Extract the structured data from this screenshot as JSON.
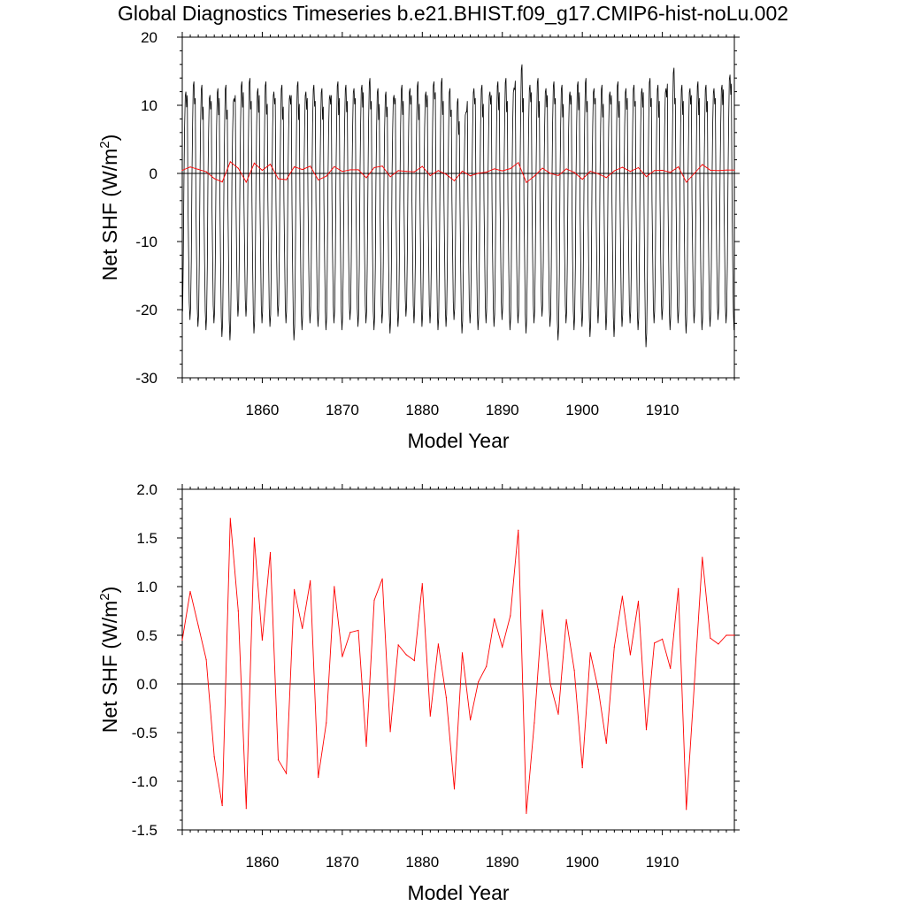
{
  "title": "Global Diagnostics Timeseries b.e21.BHIST.f09_g17.CMIP6-hist-noLu.002",
  "colors": {
    "monthly": "#000000",
    "annual": "#ff0000",
    "zero_line": "#000000",
    "axes": "#000000"
  },
  "chart_data": [
    {
      "type": "line",
      "xlabel": "Model Year",
      "ylabel_main": "Net SHF (W/m",
      "ylabel_sup": "2",
      "ylabel_close": ")",
      "xlim": [
        1850,
        1919
      ],
      "ylim": [
        -30,
        20
      ],
      "yticks": [
        "-30",
        "-20",
        "-10",
        "0",
        "10",
        "20"
      ],
      "xticks": [
        "1860",
        "1870",
        "1880",
        "1890",
        "1900",
        "1910"
      ],
      "grid": false,
      "reference_line": 0,
      "monthly_series": {
        "color": "#000000",
        "years": [
          1850,
          1919
        ],
        "annual_max": [
          12,
          13.5,
          13,
          11.5,
          12.5,
          13,
          11,
          13.5,
          14,
          12.5,
          13.5,
          12,
          13,
          11.5,
          13.5,
          12,
          13,
          12.5,
          11.5,
          13.5,
          13,
          12.5,
          13,
          14,
          12.5,
          12,
          11.5,
          13,
          12.5,
          13.5,
          12,
          13.5,
          14,
          12.5,
          11,
          9,
          12.5,
          13,
          12,
          13.5,
          14,
          12.5,
          16,
          13,
          14,
          12.5,
          13.5,
          13,
          12,
          13.5,
          14,
          12.5,
          13,
          12,
          13.5,
          12.5,
          13,
          12.5,
          14,
          13,
          12.5,
          15.5,
          13,
          12.5,
          13.5,
          13,
          12.5,
          13,
          14.5,
          15.5
        ],
        "annual_min": [
          -22,
          -21.5,
          -22.5,
          -23,
          -22,
          -24,
          -24.5,
          -21,
          -21,
          -23.5,
          -22,
          -22.5,
          -21,
          -22,
          -24.5,
          -23,
          -22,
          -22.5,
          -23,
          -22,
          -23,
          -21.5,
          -22.5,
          -22,
          -23,
          -22,
          -23.5,
          -22.5,
          -21,
          -22,
          -22.5,
          -22,
          -23,
          -22.5,
          -21.5,
          -23.5,
          -22,
          -23,
          -22,
          -22.5,
          -21.5,
          -23,
          -22,
          -23.5,
          -22,
          -21,
          -22.5,
          -24.5,
          -22,
          -23,
          -22.5,
          -24,
          -22,
          -23,
          -24,
          -22.5,
          -22,
          -23,
          -25.5,
          -22,
          -21.5,
          -23,
          -22,
          -23.5,
          -22,
          -23,
          -22.5,
          -21.5,
          -22,
          -23
        ]
      },
      "series": [
        {
          "color": "#ff0000",
          "x": [
            1850,
            1851,
            1852,
            1853,
            1854,
            1855,
            1856,
            1857,
            1858,
            1859,
            1860,
            1861,
            1862,
            1863,
            1864,
            1865,
            1866,
            1867,
            1868,
            1869,
            1870,
            1871,
            1872,
            1873,
            1874,
            1875,
            1876,
            1877,
            1878,
            1879,
            1880,
            1881,
            1882,
            1883,
            1884,
            1885,
            1886,
            1887,
            1888,
            1889,
            1890,
            1891,
            1892,
            1893,
            1894,
            1895,
            1896,
            1897,
            1898,
            1899,
            1900,
            1901,
            1902,
            1903,
            1904,
            1905,
            1906,
            1907,
            1908,
            1909,
            1910,
            1911,
            1912,
            1913,
            1914,
            1915,
            1916,
            1917,
            1918,
            1919
          ],
          "y": [
            0.45,
            0.95,
            0.6,
            0.25,
            -0.75,
            -1.25,
            1.7,
            0.75,
            -1.28,
            1.5,
            0.45,
            1.35,
            -0.78,
            -0.92,
            0.97,
            0.57,
            1.06,
            -0.96,
            -0.4,
            1.0,
            0.28,
            0.53,
            0.55,
            -0.64,
            0.86,
            1.08,
            -0.49,
            0.4,
            0.3,
            0.24,
            1.03,
            -0.33,
            0.41,
            -0.14,
            -1.08,
            0.32,
            -0.37,
            0.02,
            0.18,
            0.67,
            0.38,
            0.7,
            1.58,
            -1.33,
            -0.4,
            0.76,
            0.0,
            -0.31,
            0.66,
            0.14,
            -0.86,
            0.32,
            -0.06,
            -0.61,
            0.38,
            0.9,
            0.3,
            0.85,
            -0.47,
            0.42,
            0.46,
            0.16,
            0.98,
            -1.29,
            0.0,
            1.3,
            0.47,
            0.41,
            0.5,
            0.5
          ]
        }
      ]
    },
    {
      "type": "line",
      "xlabel": "Model Year",
      "ylabel_main": "Net SHF (W/m",
      "ylabel_sup": "2",
      "ylabel_close": ")",
      "xlim": [
        1850,
        1919
      ],
      "ylim": [
        -1.5,
        2.0
      ],
      "yticks": [
        "-1.5",
        "-1.0",
        "-0.5",
        "0.0",
        "0.5",
        "1.0",
        "1.5",
        "2.0"
      ],
      "xticks": [
        "1860",
        "1870",
        "1880",
        "1890",
        "1900",
        "1910"
      ],
      "grid": false,
      "reference_line": 0,
      "series": [
        {
          "color": "#ff0000",
          "x": [
            1850,
            1851,
            1852,
            1853,
            1854,
            1855,
            1856,
            1857,
            1858,
            1859,
            1860,
            1861,
            1862,
            1863,
            1864,
            1865,
            1866,
            1867,
            1868,
            1869,
            1870,
            1871,
            1872,
            1873,
            1874,
            1875,
            1876,
            1877,
            1878,
            1879,
            1880,
            1881,
            1882,
            1883,
            1884,
            1885,
            1886,
            1887,
            1888,
            1889,
            1890,
            1891,
            1892,
            1893,
            1894,
            1895,
            1896,
            1897,
            1898,
            1899,
            1900,
            1901,
            1902,
            1903,
            1904,
            1905,
            1906,
            1907,
            1908,
            1909,
            1910,
            1911,
            1912,
            1913,
            1914,
            1915,
            1916,
            1917,
            1918,
            1919
          ],
          "y": [
            0.45,
            0.95,
            0.6,
            0.25,
            -0.75,
            -1.25,
            1.7,
            0.75,
            -1.28,
            1.5,
            0.45,
            1.35,
            -0.78,
            -0.92,
            0.97,
            0.57,
            1.06,
            -0.96,
            -0.4,
            1.0,
            0.28,
            0.53,
            0.55,
            -0.64,
            0.86,
            1.08,
            -0.49,
            0.4,
            0.3,
            0.24,
            1.03,
            -0.33,
            0.41,
            -0.14,
            -1.08,
            0.32,
            -0.37,
            0.02,
            0.18,
            0.67,
            0.38,
            0.7,
            1.58,
            -1.33,
            -0.4,
            0.76,
            0.0,
            -0.31,
            0.66,
            0.14,
            -0.86,
            0.32,
            -0.06,
            -0.61,
            0.38,
            0.9,
            0.3,
            0.85,
            -0.47,
            0.42,
            0.46,
            0.16,
            0.98,
            -1.29,
            0.0,
            1.3,
            0.47,
            0.41,
            0.5,
            0.5
          ]
        }
      ]
    }
  ]
}
